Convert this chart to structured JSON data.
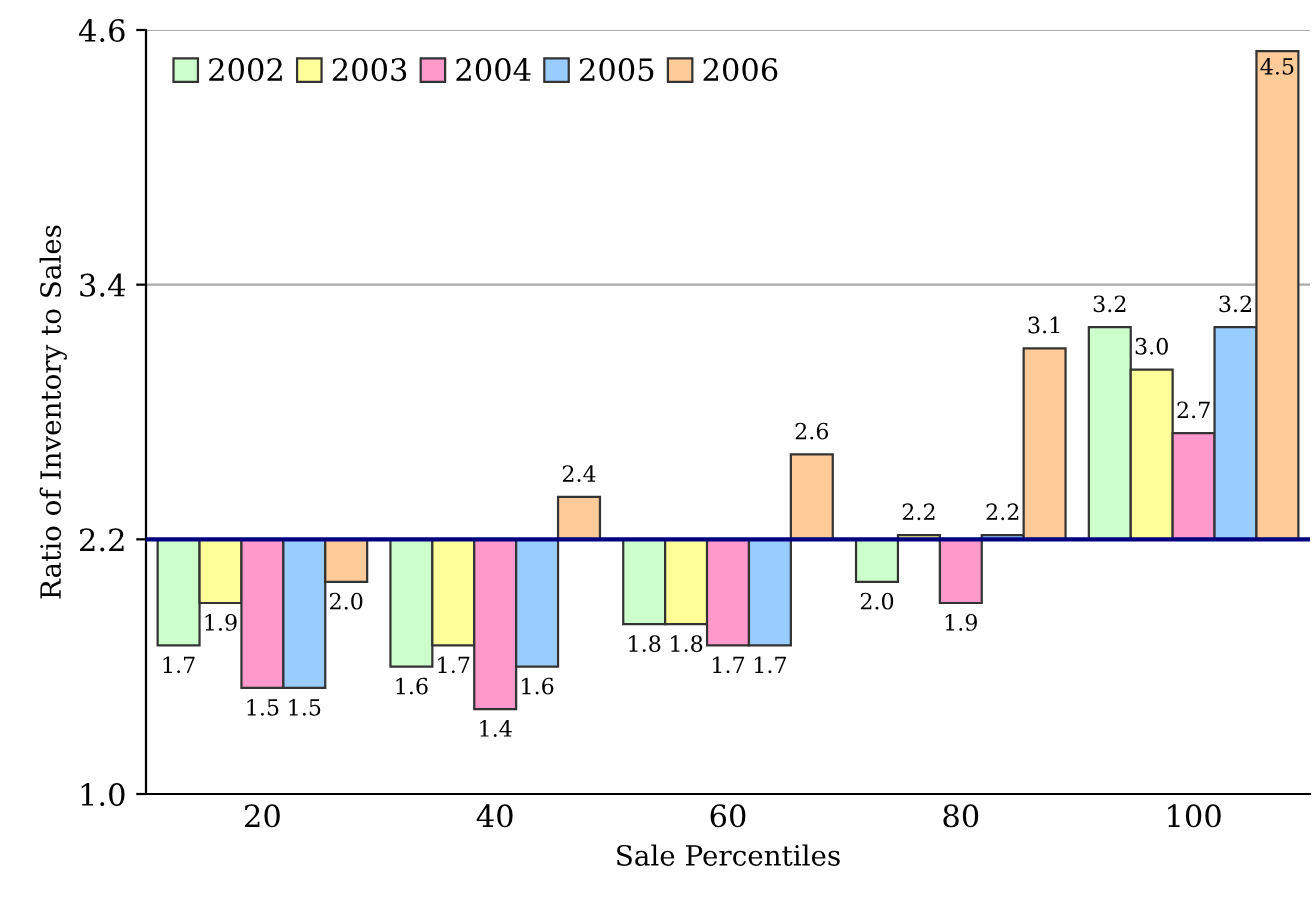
{
  "chart_data": {
    "type": "bar",
    "xlabel": "Sale Percentiles",
    "ylabel": "Ratio of Inventory to Sales",
    "categories": [
      "20",
      "40",
      "60",
      "80",
      "100"
    ],
    "series": [
      {
        "name": "2002",
        "color": "#ccffcc",
        "base": [
          2.2,
          2.2,
          2.2,
          2.2,
          2.2
        ],
        "values": [
          -0.5,
          -0.6,
          -0.4,
          -0.2,
          1.0
        ],
        "value_labels": [
          "1.7",
          "1.6",
          "1.8",
          "2.0",
          "3.2"
        ]
      },
      {
        "name": "2003",
        "color": "#ffff99",
        "base": [
          2.2,
          2.2,
          2.2,
          2.2,
          2.2
        ],
        "values": [
          -0.3,
          -0.5,
          -0.4,
          0.02,
          0.8
        ],
        "value_labels": [
          "1.9",
          "1.7",
          "1.8",
          "2.2",
          "3.0"
        ]
      },
      {
        "name": "2004",
        "color": "#ff99cc",
        "base": [
          2.2,
          2.2,
          2.2,
          2.2,
          2.2
        ],
        "values": [
          -0.7,
          -0.8,
          -0.5,
          -0.3,
          0.5
        ],
        "value_labels": [
          "1.5",
          "1.4",
          "1.7",
          "1.9",
          "2.7"
        ]
      },
      {
        "name": "2005",
        "color": "#99ccff",
        "base": [
          2.2,
          2.2,
          2.2,
          2.2,
          2.2
        ],
        "values": [
          -0.7,
          -0.6,
          -0.5,
          0.02,
          1.0
        ],
        "value_labels": [
          "1.5",
          "1.6",
          "1.7",
          "2.2",
          "3.2"
        ]
      },
      {
        "name": "2006",
        "color": "#ffcc99",
        "base": [
          2.2,
          2.2,
          2.2,
          2.2,
          2.2
        ],
        "values": [
          -0.2,
          0.2,
          0.4,
          0.9,
          2.3
        ],
        "value_labels": [
          "2.0",
          "2.4",
          "2.6",
          "3.1",
          "4.5"
        ]
      }
    ],
    "ylim": [
      1.0,
      4.6
    ],
    "yticks": [
      {
        "value": 1.0,
        "label": "1.0"
      },
      2.2,
      3.4,
      4.6
    ],
    "ref_lines": [
      {
        "axis": "y",
        "value": 3.4,
        "label": null,
        "color": "#aaaaaa"
      },
      {
        "axis": "y",
        "value": 4.6,
        "label": null,
        "color": "#aaaaaa"
      },
      {
        "axis": "y",
        "value": 2.2,
        "label": null,
        "color": "#000080"
      }
    ],
    "legend": "top left"
  }
}
